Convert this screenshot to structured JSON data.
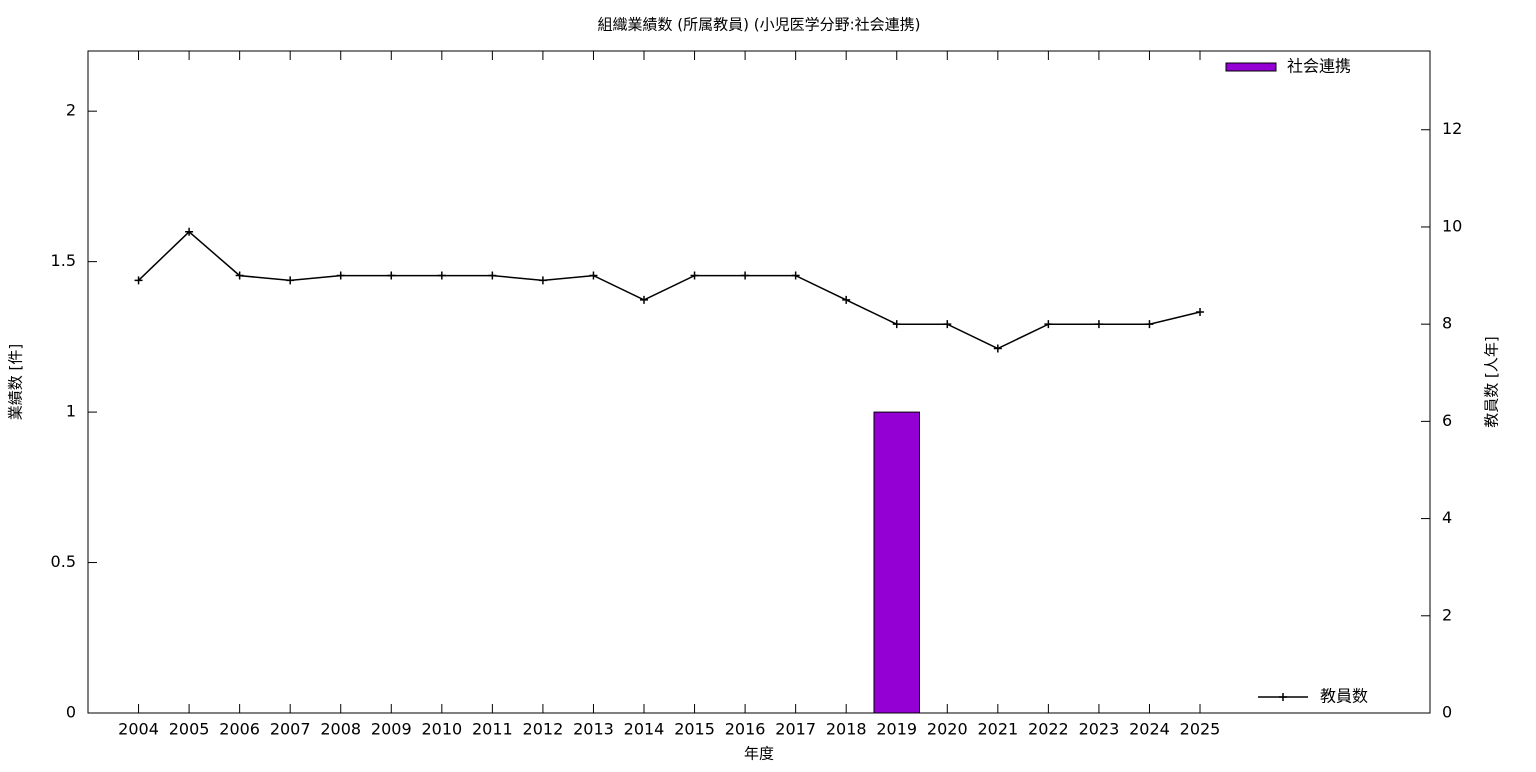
{
  "chart_data": {
    "type": "bar-line",
    "title": "組織業績数 (所属教員) (小児医学分野:社会連携)",
    "x_label": "年度",
    "y_label": "業績数 [件]",
    "y2_label": "教員数 [人年]",
    "categories": [
      "2004",
      "2005",
      "2006",
      "2007",
      "2008",
      "2009",
      "2010",
      "2011",
      "2012",
      "2013",
      "2014",
      "2015",
      "2016",
      "2017",
      "2018",
      "2019",
      "2020",
      "2021",
      "2022",
      "2023",
      "2024",
      "2025"
    ],
    "series": [
      {
        "name": "社会連携",
        "type": "bar",
        "color": "#9400d3",
        "axis": "y",
        "values": [
          0,
          0,
          0,
          0,
          0,
          0,
          0,
          0,
          0,
          0,
          0,
          0,
          0,
          0,
          0,
          1,
          0,
          0,
          0,
          0,
          0,
          0
        ]
      },
      {
        "name": "教員数",
        "type": "line",
        "color": "#000000",
        "axis": "y2",
        "values": [
          8.9,
          9.9,
          9,
          8.9,
          9,
          9,
          9,
          9,
          8.9,
          9,
          8.5,
          9,
          9,
          9,
          8.5,
          8,
          8,
          7.5,
          8,
          8,
          8,
          8.25
        ]
      }
    ],
    "ylim": [
      0,
      2.2
    ],
    "yticks": [
      0,
      0.5,
      1,
      1.5,
      2
    ],
    "y2lim": [
      0,
      13.62
    ],
    "y2ticks": [
      0,
      2,
      4,
      6,
      8,
      10,
      12
    ],
    "legend": {
      "bar": "top-right",
      "line": "bottom-right"
    }
  }
}
